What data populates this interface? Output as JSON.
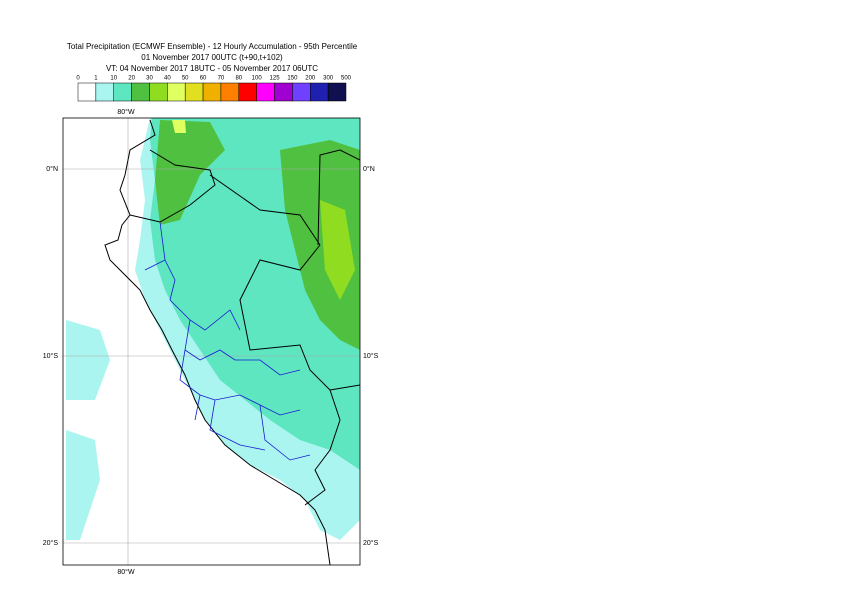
{
  "header": {
    "title": "Total Precipitation (ECMWF Ensemble) - 12 Hourly Accumulation - 95th Percentile",
    "subtitle": "01 November 2017 00UTC (t+90,t+102)",
    "valid_time": "VT: 04 November 2017 18UTC - 05 November 2017 06UTC"
  },
  "legend": {
    "labels": [
      0,
      1,
      10,
      20,
      30,
      40,
      50,
      60,
      70,
      80,
      100,
      125,
      150,
      200,
      300,
      500
    ],
    "colors": [
      "#ffffff",
      "#aaf5f0",
      "#5ee6c0",
      "#50c040",
      "#90dc20",
      "#e0ff60",
      "#e0e020",
      "#f0b000",
      "#ff8000",
      "#ff0000",
      "#ff00ff",
      "#a000d0",
      "#7040ff",
      "#2020b0",
      "#101050"
    ]
  },
  "map": {
    "lon_labels": [
      "80°W"
    ],
    "lat_labels": [
      "0°N",
      "10°S",
      "20°S"
    ]
  }
}
